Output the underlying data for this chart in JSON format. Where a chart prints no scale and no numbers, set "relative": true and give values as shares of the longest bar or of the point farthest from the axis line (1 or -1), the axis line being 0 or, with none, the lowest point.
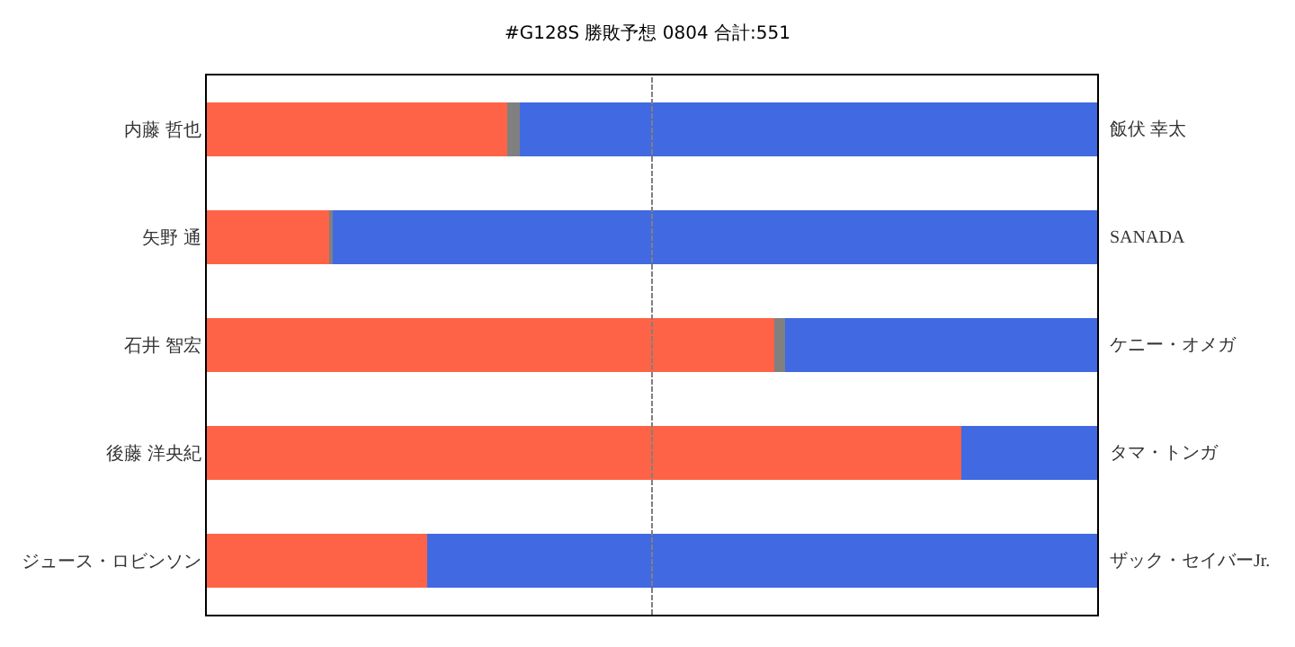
{
  "chart_data": {
    "type": "bar",
    "title": "#G128S 勝敗予想 0804 合計:551",
    "orientation": "horizontal",
    "stacked": true,
    "relative": true,
    "categories": [
      "内藤 哲也",
      "矢野 通",
      "石井 智宏",
      "後藤 洋央紀",
      "ジュース・ロビンソン"
    ],
    "series": [
      {
        "color": "#ff6347",
        "values": [
          0.337,
          0.139,
          0.637,
          0.847,
          0.247
        ]
      },
      {
        "color": "#808080",
        "values": [
          0.014,
          0.002,
          0.012,
          0,
          0
        ]
      },
      {
        "color": "#4169e1",
        "values": [
          0.649,
          0.859,
          0.351,
          0.153,
          0.753
        ]
      }
    ],
    "annotations": [
      "飯伏 幸太",
      "SANADA",
      "ケニー・オメガ",
      "タマ・トンガ",
      "ザック・セイバーJr."
    ],
    "ref_lines": [
      {
        "axis": "x",
        "value": 0.5,
        "color": "#808080",
        "line_style": "dashed"
      }
    ]
  }
}
